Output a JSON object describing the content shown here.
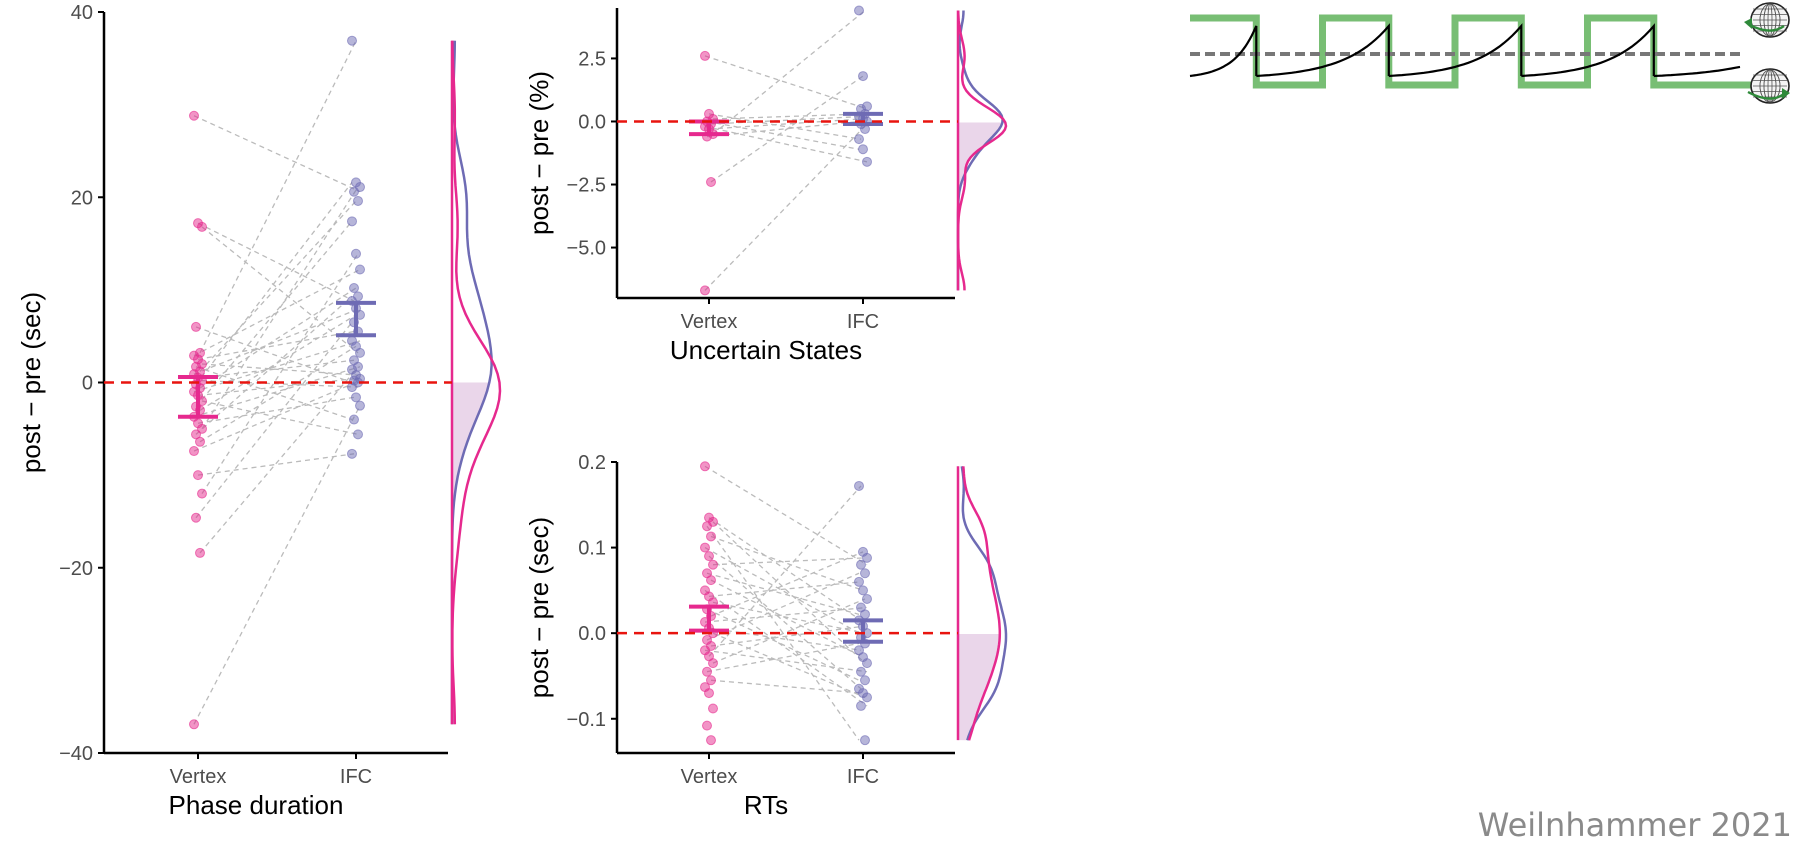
{
  "credit": "Weilnhammer 2021",
  "colors": {
    "vertex": "#e6298e",
    "ifc": "#6e6bb4",
    "zero_line": "#e8140f",
    "pair_line": "#bbbbbb",
    "density_fill": "#ead6ea",
    "square_wave": "#78be74",
    "threshold": "#777777"
  },
  "chart_data": [
    {
      "type": "scatter",
      "panel": "phase-duration",
      "xlabel": "Phase duration",
      "ylabel": "post − pre (sec)",
      "categories": [
        "Vertex",
        "IFC"
      ],
      "ylim": [
        -40,
        40
      ],
      "yticks": [
        40,
        20,
        0,
        -20,
        -40
      ],
      "yticklabels": [
        "40",
        "20",
        "0",
        "−20",
        "−40"
      ],
      "reference_line": 0,
      "series": [
        {
          "category": "Vertex",
          "mean": -1.5,
          "error_low": -3.7,
          "error_high": 0.6,
          "values": [
            28.8,
            17.2,
            16.8,
            6.0,
            3.2,
            2.9,
            2.5,
            2.0,
            1.7,
            1.2,
            0.9,
            0.5,
            0.2,
            -0.2,
            -0.6,
            -1.0,
            -1.4,
            -2.0,
            -2.6,
            -3.0,
            -3.7,
            -4.4,
            -5.0,
            -5.6,
            -6.4,
            -7.4,
            -10.0,
            -12.0,
            -14.6,
            -18.4,
            -36.9
          ]
        },
        {
          "category": "IFC",
          "mean": 7.0,
          "error_low": 5.1,
          "error_high": 8.6,
          "values": [
            36.9,
            21.6,
            21.1,
            20.6,
            19.6,
            17.4,
            13.9,
            12.2,
            10.2,
            9.3,
            8.8,
            8.0,
            7.3,
            6.5,
            5.5,
            4.5,
            3.9,
            3.2,
            2.4,
            1.7,
            1.4,
            0.8,
            0.4,
            0.2,
            0.0,
            -0.5,
            -1.6,
            -2.5,
            -4.0,
            -5.6,
            -7.7
          ]
        }
      ]
    },
    {
      "type": "scatter",
      "panel": "uncertain-states",
      "xlabel": "Uncertain States",
      "ylabel": "post − pre (%)",
      "categories": [
        "Vertex",
        "IFC"
      ],
      "ylim": [
        -7.0,
        4.5
      ],
      "yticks": [
        2.5,
        0.0,
        -2.5,
        -5.0
      ],
      "yticklabels": [
        "2.5",
        "0.0",
        "−2.5",
        "−5.0"
      ],
      "reference_line": 0,
      "series": [
        {
          "category": "Vertex",
          "mean": -0.2,
          "error_low": -0.5,
          "error_high": 0.0,
          "values": [
            2.6,
            0.3,
            0.1,
            0.0,
            -0.1,
            -0.2,
            -0.3,
            -0.5,
            -0.6,
            -2.4,
            -6.7
          ]
        },
        {
          "category": "IFC",
          "mean": 0.1,
          "error_low": -0.1,
          "error_high": 0.3,
          "values": [
            4.4,
            1.8,
            0.6,
            0.5,
            0.3,
            0.2,
            0.1,
            0.0,
            -0.1,
            -0.3,
            -0.7,
            -1.1,
            -1.6
          ]
        }
      ]
    },
    {
      "type": "scatter",
      "panel": "rts",
      "xlabel": "RTs",
      "ylabel": "post − pre (sec)",
      "categories": [
        "Vertex",
        "IFC"
      ],
      "ylim": [
        -0.14,
        0.2
      ],
      "yticks": [
        0.2,
        0.1,
        0.0,
        -0.1
      ],
      "yticklabels": [
        "0.2",
        "0.1",
        "0.0",
        "−0.1"
      ],
      "reference_line": 0,
      "series": [
        {
          "category": "Vertex",
          "mean": 0.016,
          "error_low": 0.003,
          "error_high": 0.031,
          "values": [
            0.195,
            0.135,
            0.13,
            0.125,
            0.113,
            0.1,
            0.09,
            0.08,
            0.07,
            0.062,
            0.05,
            0.043,
            0.036,
            0.028,
            0.02,
            0.013,
            0.006,
            0.0,
            -0.008,
            -0.015,
            -0.02,
            -0.027,
            -0.035,
            -0.045,
            -0.055,
            -0.063,
            -0.07,
            -0.088,
            -0.108,
            -0.125
          ]
        },
        {
          "category": "IFC",
          "mean": 0.004,
          "error_low": -0.01,
          "error_high": 0.015,
          "values": [
            0.172,
            0.095,
            0.088,
            0.08,
            0.07,
            0.06,
            0.05,
            0.04,
            0.03,
            0.022,
            0.015,
            0.008,
            0.0,
            -0.005,
            -0.012,
            -0.02,
            -0.028,
            -0.035,
            -0.045,
            -0.055,
            -0.065,
            -0.07,
            -0.075,
            -0.085,
            -0.125
          ]
        }
      ]
    }
  ],
  "schematic": {
    "cycles": 4,
    "levels": {
      "square_high": 1.0,
      "square_low": -1.0,
      "threshold": 0.0
    },
    "icons": [
      "percept-globe-up-icon",
      "percept-globe-down-icon"
    ]
  }
}
